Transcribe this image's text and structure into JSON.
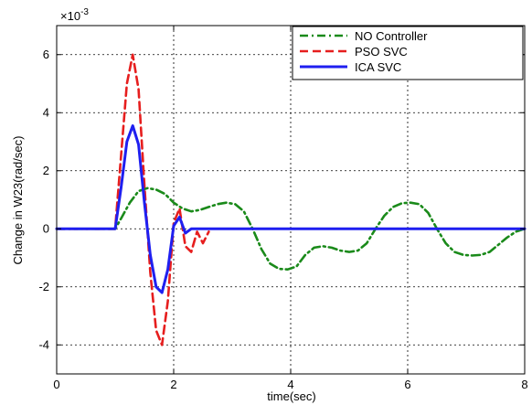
{
  "chart_data": {
    "type": "line",
    "title": "",
    "xlabel": "time(sec)",
    "ylabel": "Change in W23(rad/sec)",
    "y_multiplier_label": "×10",
    "y_multiplier_exponent": "-3",
    "xlim": [
      0,
      8
    ],
    "ylim": [
      -5,
      7
    ],
    "xticks": [
      0,
      2,
      4,
      6,
      8
    ],
    "xtick_labels": [
      "0",
      "2",
      "4",
      "6",
      "8"
    ],
    "yticks": [
      -4,
      -2,
      0,
      2,
      4,
      6
    ],
    "ytick_labels": [
      "-4",
      "-2",
      "0",
      "2",
      "4",
      "6"
    ],
    "grid": true,
    "legend_position": "top-right",
    "series": [
      {
        "name": "NO Controller",
        "color": "#1a8a1a",
        "style": "dashdot",
        "x": [
          0,
          1.0,
          1.1,
          1.25,
          1.4,
          1.55,
          1.7,
          1.85,
          2.0,
          2.15,
          2.3,
          2.45,
          2.6,
          2.75,
          2.9,
          3.05,
          3.2,
          3.35,
          3.5,
          3.65,
          3.8,
          3.95,
          4.1,
          4.25,
          4.4,
          4.55,
          4.7,
          4.85,
          5.0,
          5.15,
          5.3,
          5.45,
          5.6,
          5.75,
          5.9,
          6.05,
          6.2,
          6.35,
          6.5,
          6.65,
          6.8,
          6.95,
          7.1,
          7.25,
          7.4,
          7.55,
          7.7,
          7.85,
          8.0
        ],
        "y": [
          0,
          0,
          0.35,
          0.9,
          1.3,
          1.4,
          1.35,
          1.2,
          0.9,
          0.7,
          0.6,
          0.65,
          0.75,
          0.85,
          0.9,
          0.85,
          0.6,
          0.0,
          -0.7,
          -1.2,
          -1.38,
          -1.4,
          -1.3,
          -0.9,
          -0.65,
          -0.6,
          -0.65,
          -0.75,
          -0.8,
          -0.75,
          -0.5,
          0.0,
          0.45,
          0.75,
          0.88,
          0.9,
          0.85,
          0.55,
          0.0,
          -0.5,
          -0.8,
          -0.9,
          -0.92,
          -0.9,
          -0.8,
          -0.55,
          -0.3,
          -0.1,
          0.0
        ]
      },
      {
        "name": "PSO SVC",
        "color": "#e61e1e",
        "style": "dashed",
        "x": [
          0,
          1.0,
          1.1,
          1.2,
          1.3,
          1.4,
          1.5,
          1.6,
          1.7,
          1.8,
          1.9,
          2.0,
          2.1,
          2.2,
          2.3,
          2.4,
          2.5,
          2.6
        ],
        "y": [
          0,
          0,
          2.5,
          5.0,
          6.0,
          4.8,
          1.5,
          -1.5,
          -3.5,
          -4.0,
          -2.5,
          0.2,
          0.7,
          -0.6,
          -0.8,
          -0.1,
          -0.5,
          -0.1
        ]
      },
      {
        "name": "ICA SVC",
        "color": "#1f1ff0",
        "style": "solid",
        "x": [
          0,
          1.0,
          1.1,
          1.2,
          1.3,
          1.4,
          1.5,
          1.6,
          1.7,
          1.8,
          1.9,
          2.0,
          2.1,
          2.2,
          2.3,
          8.0
        ],
        "y": [
          0,
          0,
          1.4,
          3.0,
          3.55,
          2.9,
          0.9,
          -0.9,
          -2.0,
          -2.2,
          -1.4,
          0.1,
          0.4,
          -0.15,
          0.0,
          0.0
        ]
      }
    ]
  }
}
